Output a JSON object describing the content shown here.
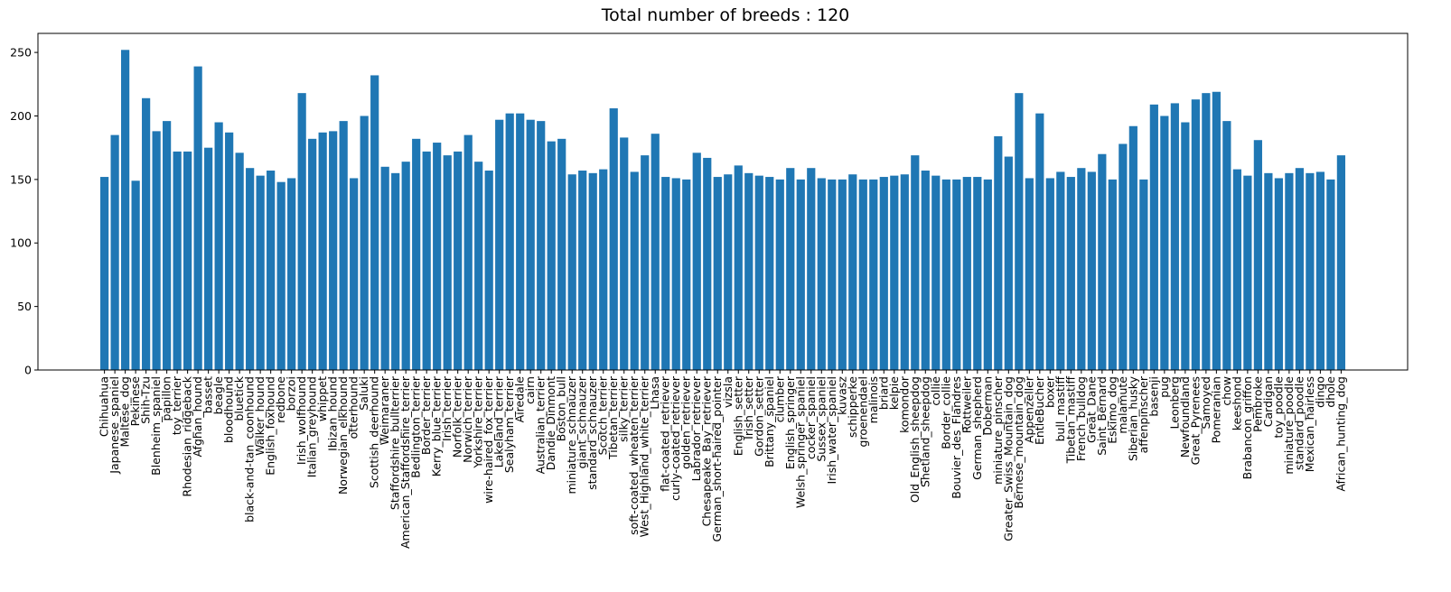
{
  "chart_data": {
    "type": "bar",
    "title": "Total number of breeds : 120",
    "xlabel": "",
    "ylabel": "",
    "ylim": [
      0,
      265
    ],
    "yticks": [
      0,
      50,
      100,
      150,
      200,
      250
    ],
    "grid": false,
    "bar_color": "#1f77b4",
    "categories": [
      "Chihuahua",
      "Japanese_spaniel",
      "Maltese_dog",
      "Pekinese",
      "Shih-Tzu",
      "Blenheim_spaniel",
      "papillon",
      "toy_terrier",
      "Rhodesian_ridgeback",
      "Afghan_hound",
      "basset",
      "beagle",
      "bloodhound",
      "bluetick",
      "black-and-tan_coonhound",
      "Walker_hound",
      "English_foxhound",
      "redbone",
      "borzoi",
      "Irish_wolfhound",
      "Italian_greyhound",
      "whippet",
      "Ibizan_hound",
      "Norwegian_elkhound",
      "otterhound",
      "Saluki",
      "Scottish_deerhound",
      "Weimaraner",
      "Staffordshire_bullterrier",
      "American_Staffordshire_terrier",
      "Bedlington_terrier",
      "Border_terrier",
      "Kerry_blue_terrier",
      "Irish_terrier",
      "Norfolk_terrier",
      "Norwich_terrier",
      "Yorkshire_terrier",
      "wire-haired_fox_terrier",
      "Lakeland_terrier",
      "Sealyham_terrier",
      "Airedale",
      "cairn",
      "Australian_terrier",
      "Dandie_Dinmont",
      "Boston_bull",
      "miniature_schnauzer",
      "giant_schnauzer",
      "standard_schnauzer",
      "Scotch_terrier",
      "Tibetan_terrier",
      "silky_terrier",
      "soft-coated_wheaten_terrier",
      "West_Highland_white_terrier",
      "Lhasa",
      "flat-coated_retriever",
      "curly-coated_retriever",
      "golden_retriever",
      "Labrador_retriever",
      "Chesapeake_Bay_retriever",
      "German_short-haired_pointer",
      "vizsla",
      "English_setter",
      "Irish_setter",
      "Gordon_setter",
      "Brittany_spaniel",
      "clumber",
      "English_springer",
      "Welsh_springer_spaniel",
      "cocker_spaniel",
      "Sussex_spaniel",
      "Irish_water_spaniel",
      "kuvasz",
      "schipperke",
      "groenendael",
      "malinois",
      "briard",
      "kelpie",
      "komondor",
      "Old_English_sheepdog",
      "Shetland_sheepdog",
      "collie",
      "Border_collie",
      "Bouvier_des_Flandres",
      "Rottweiler",
      "German_shepherd",
      "Doberman",
      "miniature_pinscher",
      "Greater_Swiss_Mountain_dog",
      "Bernese_mountain_dog",
      "Appenzeller",
      "EntleBucher",
      "boxer",
      "bull_mastiff",
      "Tibetan_mastiff",
      "French_bulldog",
      "Great_Dane",
      "Saint_Bernard",
      "Eskimo_dog",
      "malamute",
      "Siberian_husky",
      "affenpinscher",
      "basenji",
      "pug",
      "Leonberg",
      "Newfoundland",
      "Great_Pyrenees",
      "Samoyed",
      "Pomeranian",
      "chow",
      "keeshond",
      "Brabancon_griffon",
      "Pembroke",
      "Cardigan",
      "toy_poodle",
      "miniature_poodle",
      "standard_poodle",
      "Mexican_hairless",
      "dingo",
      "dhole",
      "African_hunting_dog"
    ],
    "values": [
      152,
      185,
      252,
      149,
      214,
      188,
      196,
      172,
      172,
      239,
      175,
      195,
      187,
      171,
      159,
      153,
      157,
      148,
      151,
      218,
      182,
      187,
      188,
      196,
      151,
      200,
      232,
      160,
      155,
      164,
      182,
      172,
      179,
      169,
      172,
      185,
      164,
      157,
      197,
      202,
      202,
      197,
      196,
      180,
      182,
      154,
      157,
      155,
      158,
      206,
      183,
      156,
      169,
      186,
      152,
      151,
      150,
      171,
      167,
      152,
      154,
      161,
      155,
      153,
      152,
      150,
      159,
      150,
      159,
      151,
      150,
      150,
      154,
      150,
      150,
      152,
      153,
      154,
      169,
      157,
      153,
      150,
      150,
      152,
      152,
      150,
      184,
      168,
      218,
      151,
      202,
      151,
      156,
      152,
      159,
      156,
      170,
      150,
      178,
      192,
      150,
      209,
      200,
      210,
      195,
      213,
      218,
      219,
      196,
      158,
      153,
      181,
      155,
      151,
      155,
      159,
      155,
      156,
      150,
      169
    ]
  }
}
